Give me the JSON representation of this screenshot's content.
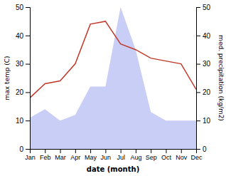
{
  "chart_data": {
    "type": "line",
    "categories": [
      "Jan",
      "Feb",
      "Mar",
      "Apr",
      "May",
      "Jun",
      "Jul",
      "Aug",
      "Sep",
      "Oct",
      "Nov",
      "Dec"
    ],
    "series": [
      {
        "type": "area",
        "color": "#c8cef5",
        "axis": "y2",
        "values": [
          11,
          14,
          10,
          12,
          22,
          22,
          50,
          35,
          13,
          10,
          10,
          10
        ]
      },
      {
        "type": "line",
        "color": "#c0392b",
        "values": [
          18,
          23,
          24,
          30,
          44,
          45,
          37,
          35,
          32,
          31,
          30,
          21
        ]
      }
    ],
    "xlabel": "date (month)",
    "ylabel": "max temp (C)",
    "y2label": "med. precipitation (kg/m2)",
    "ylim": [
      0,
      50
    ],
    "yticks": [
      0,
      10,
      20,
      30,
      40,
      50
    ],
    "y2lim": [
      0,
      50
    ],
    "y2ticks": [
      0,
      10,
      20,
      30,
      40,
      50
    ],
    "grid": false
  }
}
